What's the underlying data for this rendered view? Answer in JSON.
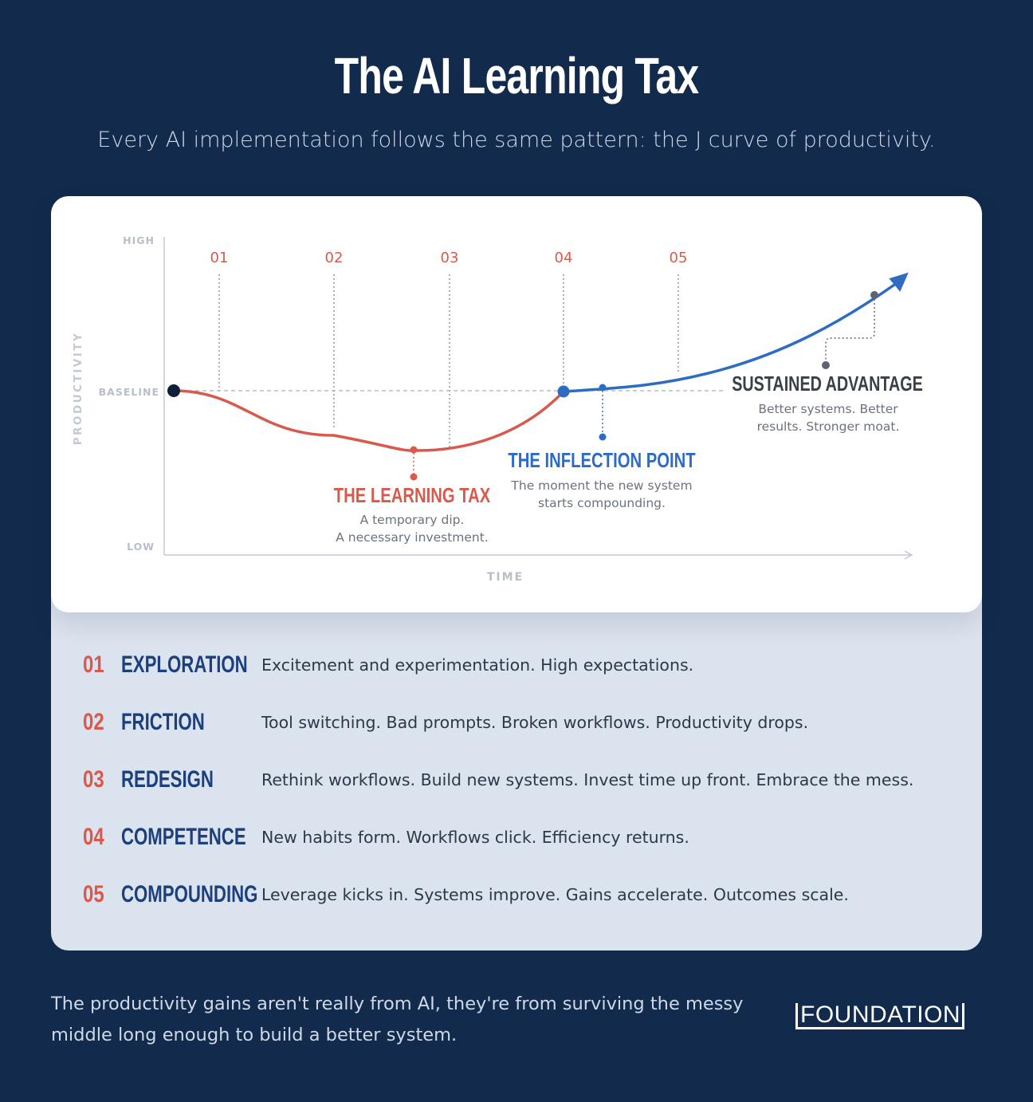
{
  "title": "The AI Learning Tax",
  "subtitle": "Every AI implementation follows the same pattern: the J curve of productivity.",
  "colors": {
    "background": "#122a4c",
    "dip_curve": "#d95a4c",
    "growth_curve": "#2e6cc4",
    "phase_number": "#d95a4c",
    "phase_name": "#1c3f7e"
  },
  "chart": {
    "y_axis_label": "PRODUCTIVITY",
    "x_axis_label": "TIME",
    "y_tick_high": "HIGH",
    "y_tick_baseline": "BASELINE",
    "y_tick_low": "LOW",
    "phase_markers": [
      "01",
      "02",
      "03",
      "04",
      "05"
    ],
    "annotations": {
      "learning_tax": {
        "title": "THE LEARNING TAX",
        "line1": "A temporary dip.",
        "line2": "A necessary investment."
      },
      "inflection_point": {
        "title": "THE INFLECTION POINT",
        "line1": "The moment the new system",
        "line2": "starts compounding."
      },
      "sustained_advantage": {
        "title": "SUSTAINED ADVANTAGE",
        "line1": "Better systems. Better",
        "line2": "results. Stronger moat."
      }
    }
  },
  "phases": [
    {
      "num": "01",
      "name": "EXPLORATION",
      "desc": "Excitement and experimentation. High expectations."
    },
    {
      "num": "02",
      "name": "FRICTION",
      "desc": "Tool switching. Bad prompts. Broken workflows. Productivity drops."
    },
    {
      "num": "03",
      "name": "REDESIGN",
      "desc": "Rethink workflows. Build new systems. Invest time up front. Embrace the mess."
    },
    {
      "num": "04",
      "name": "COMPETENCE",
      "desc": "New habits form. Workflows click. Efficiency returns."
    },
    {
      "num": "05",
      "name": "COMPOUNDING",
      "desc": "Leverage kicks in. Systems improve. Gains accelerate. Outcomes scale."
    }
  ],
  "footer": {
    "text": "The productivity gains aren't really from AI, they're from surviving the messy middle long enough to build a better system.",
    "brand": "FOUNDATION"
  }
}
